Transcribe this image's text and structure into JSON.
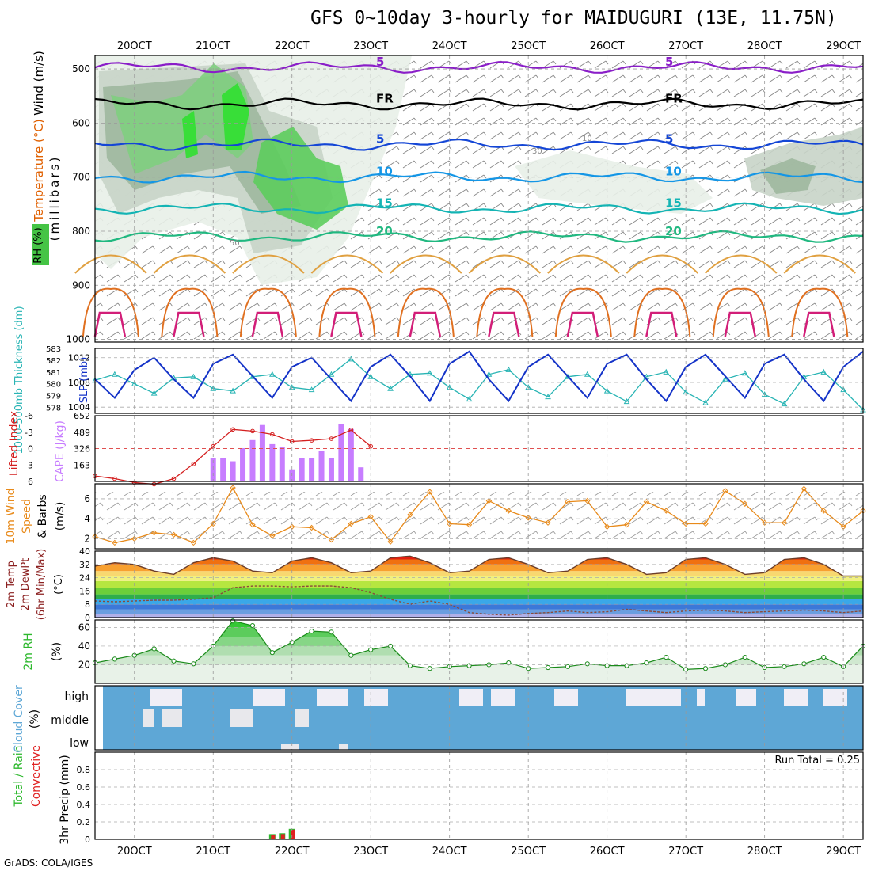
{
  "title": "GFS 0~10day 3-hourly for MAIDUGURI (13E, 11.75N)",
  "footer": "GrADS: COLA/IGES",
  "x_axis": {
    "dates": [
      "20OCT",
      "21OCT",
      "22OCT",
      "23OCT",
      "24OCT",
      "25OCT",
      "26OCT",
      "27OCT",
      "28OCT",
      "29OCT"
    ],
    "start_day": 19.5,
    "end_day": 29.25
  },
  "panels": {
    "upper_air": {
      "ylabel": "(millibars)",
      "title_parts": [
        {
          "text": "Wind (m/s)",
          "color": "#000000"
        },
        {
          "text": "Temperature (°C)",
          "color": "#e06000"
        },
        {
          "text": "RH (%)",
          "color": "#2db82d"
        }
      ],
      "yticks": [
        500,
        600,
        700,
        800,
        900,
        1000
      ],
      "isotherms": [
        {
          "label": "5",
          "level": 497,
          "color": "#8a1ec8"
        },
        {
          "label": "FR",
          "level": 565,
          "color": "#000000"
        },
        {
          "label": "5",
          "level": 640,
          "color": "#1446d6"
        },
        {
          "label": "10",
          "level": 700,
          "color": "#1496e6"
        },
        {
          "label": "15",
          "level": 758,
          "color": "#14b4b4"
        },
        {
          "label": "20",
          "level": 810,
          "color": "#20b880"
        }
      ],
      "rh_labels": [
        "10",
        "30",
        "50"
      ]
    },
    "slp_thickness": {
      "label_thickness": "1000-500mb Thickness (dm)",
      "label_slp": "SLP (mb)",
      "thickness_ticks": [
        "578",
        "579",
        "580",
        "581",
        "582",
        "583"
      ],
      "slp_ticks": [
        "1004",
        "1008",
        "1012"
      ],
      "slp_color": "#1433c8",
      "thickness_color": "#28b4b4"
    },
    "lifted_cape": {
      "label_li": "Lifted Index",
      "label_cape": "CAPE (J/kg)",
      "li_ticks": [
        "-6",
        "-3",
        "0",
        "3",
        "6"
      ],
      "cape_ticks": [
        "652",
        "489",
        "326",
        "163"
      ],
      "li_color": "#d42020",
      "cape_color": "#c77dff"
    },
    "wind10m": {
      "label": "10m Wind Speed & Barbs",
      "unit": "(m/s)",
      "yticks": [
        "2",
        "4",
        "6"
      ],
      "color": "#e88a1a"
    },
    "temp2m": {
      "label": "2m Temp",
      "label2": "2m DewPt",
      "label3": "(6hr Min/Max)",
      "unit": "(°C)",
      "yticks": [
        "0",
        "8",
        "16",
        "24",
        "32",
        "40"
      ]
    },
    "rh2m": {
      "label": "2m RH",
      "unit": "(%)",
      "yticks": [
        "20",
        "40",
        "60"
      ],
      "color": "#2db82d"
    },
    "cloud": {
      "label": "Cloud Cover",
      "unit": "(%)",
      "levels": [
        "high",
        "middle",
        "low"
      ],
      "color": "#5ea7d6"
    },
    "precip": {
      "label_total": "Total / Rain",
      "label_conv": "Convective",
      "unit": "3hr Precip (mm)",
      "yticks": [
        "0",
        "0.2",
        "0.4",
        "0.6",
        "0.8"
      ],
      "run_total": "Run Total = 0.25"
    }
  },
  "chart_data": [
    {
      "type": "line",
      "title": "SLP (mb)",
      "x_days": [
        19.5,
        19.75,
        20.0,
        20.25,
        20.5,
        20.75,
        21.0,
        21.25,
        21.5,
        21.75,
        22.0,
        22.25,
        22.5,
        22.75,
        23.0,
        23.25,
        23.5,
        23.75,
        24.0,
        24.25,
        24.5,
        24.75,
        25.0,
        25.25,
        25.5,
        25.75,
        26.0,
        26.25,
        26.5,
        26.75,
        27.0,
        27.25,
        27.5,
        27.75,
        28.0,
        28.25,
        28.5,
        28.75,
        29.0,
        29.25
      ],
      "series": [
        {
          "name": "SLP (mb)",
          "values": [
            1008.5,
            1005.5,
            1010,
            1012,
            1008.5,
            1005.5,
            1011,
            1012.5,
            1009,
            1005.5,
            1010.5,
            1012,
            1008.5,
            1005,
            1010.5,
            1012.5,
            1009,
            1005,
            1011,
            1013,
            1008.5,
            1005,
            1010.5,
            1012.5,
            1009,
            1005.5,
            1011,
            1012.5,
            1008.5,
            1005,
            1010.5,
            1012.5,
            1009,
            1005.5,
            1011,
            1012.5,
            1008.5,
            1005,
            1010.5,
            1013
          ]
        },
        {
          "name": "1000-500mb Thickness (dm)",
          "values": [
            580.3,
            580.8,
            580.0,
            579.2,
            580.5,
            580.6,
            579.6,
            579.4,
            580.6,
            580.8,
            579.7,
            579.5,
            580.8,
            582.1,
            580.6,
            579.6,
            580.8,
            580.9,
            579.7,
            578.7,
            580.8,
            581.2,
            579.7,
            578.9,
            580.6,
            580.8,
            579.4,
            578.5,
            580.6,
            581.0,
            579.3,
            578.4,
            580.4,
            580.9,
            579.1,
            578.3,
            580.6,
            581.0,
            579.5,
            577.8
          ]
        }
      ]
    },
    {
      "type": "bar",
      "title": "CAPE (J/kg)",
      "x_days": [
        21.0,
        21.125,
        21.25,
        21.375,
        21.5,
        21.625,
        21.75,
        21.875,
        22.0,
        22.125,
        22.25,
        22.375,
        22.5,
        22.625,
        22.75,
        22.875
      ],
      "values": [
        230,
        230,
        200,
        330,
        410,
        560,
        370,
        340,
        120,
        230,
        230,
        300,
        230,
        570,
        520,
        140
      ],
      "ylim": [
        0,
        652
      ]
    },
    {
      "type": "line",
      "title": "Lifted Index",
      "x_days": [
        19.5,
        19.75,
        20.0,
        20.25,
        20.5,
        20.75,
        21.0,
        21.25,
        21.5,
        21.75,
        22.0,
        22.25,
        22.5,
        22.75,
        23.0
      ],
      "values": [
        5.0,
        5.5,
        6.2,
        6.5,
        5.5,
        2.8,
        -0.4,
        -3.5,
        -3.2,
        -2.6,
        -1.3,
        -1.5,
        -1.8,
        -3.4,
        -0.4
      ],
      "ylim": [
        6,
        -6
      ]
    },
    {
      "type": "line",
      "title": "10m Wind Speed",
      "x_days": [
        19.5,
        19.75,
        20.0,
        20.25,
        20.5,
        20.75,
        21.0,
        21.25,
        21.5,
        21.75,
        22.0,
        22.25,
        22.5,
        22.75,
        23.0,
        23.25,
        23.5,
        23.75,
        24.0,
        24.25,
        24.5,
        24.75,
        25.0,
        25.25,
        25.5,
        25.75,
        26.0,
        26.25,
        26.5,
        26.75,
        27.0,
        27.25,
        27.5,
        27.75,
        28.0,
        28.25,
        28.5,
        28.75,
        29.0,
        29.25
      ],
      "values": [
        2.2,
        1.6,
        2.0,
        2.6,
        2.4,
        1.6,
        3.5,
        7.1,
        3.4,
        2.3,
        3.2,
        3.1,
        1.9,
        3.5,
        4.2,
        1.7,
        4.4,
        6.7,
        3.5,
        3.4,
        5.8,
        4.8,
        4.1,
        3.6,
        5.7,
        5.8,
        3.2,
        3.4,
        5.7,
        4.8,
        3.5,
        3.5,
        6.8,
        5.5,
        3.6,
        3.6,
        7.0,
        4.8,
        3.2,
        4.8
      ],
      "ylim": [
        1,
        7.5
      ]
    },
    {
      "type": "area",
      "title": "2m Temp",
      "x_days": [
        19.5,
        19.75,
        20.0,
        20.25,
        20.5,
        20.75,
        21.0,
        21.25,
        21.5,
        21.75,
        22.0,
        22.25,
        22.5,
        22.75,
        23.0,
        23.25,
        23.5,
        23.75,
        24.0,
        24.25,
        24.5,
        24.75,
        25.0,
        25.25,
        25.5,
        25.75,
        26.0,
        26.25,
        26.5,
        26.75,
        27.0,
        27.25,
        27.5,
        27.75,
        28.0,
        28.25,
        28.5,
        28.75,
        29.0,
        29.25
      ],
      "series": [
        {
          "name": "2m Temp",
          "values": [
            31,
            33,
            32,
            28,
            26,
            33,
            36,
            34,
            28,
            27,
            34,
            36,
            33,
            27,
            28,
            36,
            37,
            33,
            27,
            28,
            35,
            36,
            32,
            27,
            28,
            35,
            36,
            32,
            26,
            27,
            35,
            36,
            32,
            26,
            27,
            35,
            36,
            32,
            25,
            25
          ]
        },
        {
          "name": "2m DewPt",
          "values": [
            10,
            9.5,
            10,
            10.5,
            10.5,
            11,
            12,
            18,
            19,
            19,
            18.5,
            19,
            19,
            18,
            15,
            11,
            8,
            10,
            8,
            3,
            2,
            1.5,
            2.5,
            3,
            4,
            3,
            3.5,
            5,
            4,
            3,
            4,
            4.5,
            4,
            3,
            3.5,
            4,
            4.5,
            4,
            3,
            4
          ]
        }
      ],
      "ylim": [
        0,
        40
      ]
    },
    {
      "type": "area",
      "title": "2m RH",
      "x_days": [
        19.5,
        19.75,
        20.0,
        20.25,
        20.5,
        20.75,
        21.0,
        21.25,
        21.5,
        21.75,
        22.0,
        22.25,
        22.5,
        22.75,
        23.0,
        23.25,
        23.5,
        23.75,
        24.0,
        24.25,
        24.5,
        24.75,
        25.0,
        25.25,
        25.5,
        25.75,
        26.0,
        26.25,
        26.5,
        26.75,
        27.0,
        27.25,
        27.5,
        27.75,
        28.0,
        28.25,
        28.5,
        28.75,
        29.0,
        29.25
      ],
      "values": [
        22,
        26,
        30,
        37,
        24,
        21,
        40,
        67,
        62,
        33,
        44,
        56,
        55,
        30,
        36,
        40,
        19,
        16,
        18,
        19,
        20,
        22,
        16,
        17,
        18,
        21,
        19,
        19,
        22,
        28,
        15,
        16,
        20,
        28,
        17,
        18,
        21,
        28,
        18,
        40
      ],
      "ylim": [
        0,
        68
      ]
    },
    {
      "type": "bar",
      "title": "3hr Precip (mm)",
      "x_days": [
        21.75,
        21.875,
        22.0
      ],
      "series": [
        {
          "name": "Total / Rain",
          "values": [
            0.06,
            0.07,
            0.12
          ]
        },
        {
          "name": "Convective",
          "values": [
            0.05,
            0.06,
            0.11
          ]
        }
      ],
      "ylim": [
        0,
        1
      ]
    }
  ]
}
